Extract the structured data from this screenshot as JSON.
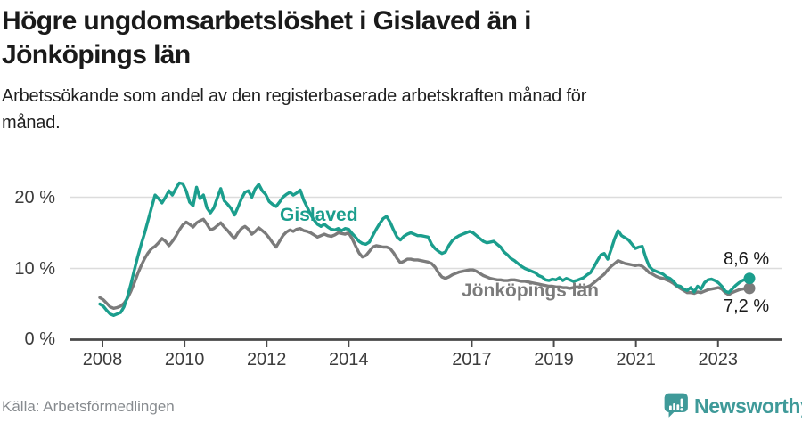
{
  "header": {
    "title_lines": [
      "Högre ungdomsarbetslöshet i Gislaved än i",
      "Jönköpings län"
    ],
    "subtitle_lines": [
      "Arbetssökande som andel av den registerbaserade arbetskraften månad för",
      "månad."
    ]
  },
  "footer": {
    "source": "Källa: Arbetsförmedlingen",
    "brand": "Newsworthy"
  },
  "colors": {
    "gislaved_line": "#1b9e8d",
    "jonkoping_line": "#7b7b7b",
    "brand_teal": "#3f9a99",
    "axis": "#4a4a4a",
    "gridline": "#dcdcdc",
    "text_dark": "#1a1a1a"
  },
  "chart_data": {
    "type": "line",
    "title": "Högre ungdomsarbetslöshet i Gislaved än i Jönköpings län",
    "subtitle": "Arbetssökande som andel av den registerbaserade arbetskraften månad för månad.",
    "unit": "%",
    "frequency": "monthly",
    "start": "2008-01",
    "end": "2023-09",
    "ylim": [
      0,
      24
    ],
    "grid": "horizontal",
    "y_ticks": [
      0,
      10,
      20
    ],
    "y_tick_labels": [
      "0 %",
      "10 %",
      "20 %"
    ],
    "x_tick_years": [
      2008,
      2010,
      2012,
      2014,
      2017,
      2019,
      2021,
      2023
    ],
    "series": [
      {
        "name": "Gislaved",
        "color": "#1b9e8d",
        "end_label": "8,6 %",
        "last_value": 8.6,
        "values": [
          5.0,
          4.7,
          4.1,
          3.6,
          3.4,
          3.6,
          3.8,
          4.6,
          6.0,
          7.8,
          9.8,
          11.7,
          13.4,
          15.0,
          16.8,
          18.6,
          20.3,
          19.8,
          19.2,
          20.0,
          20.9,
          20.3,
          21.2,
          22.0,
          21.9,
          20.9,
          19.3,
          18.8,
          21.4,
          19.8,
          20.3,
          18.5,
          17.8,
          18.5,
          19.9,
          21.2,
          19.5,
          19.0,
          18.4,
          17.5,
          18.6,
          19.8,
          20.7,
          20.9,
          20.0,
          21.2,
          21.8,
          20.9,
          20.4,
          19.4,
          19.0,
          18.7,
          19.3,
          20.0,
          20.4,
          20.7,
          20.3,
          20.6,
          21.0,
          19.6,
          18.6,
          17.6,
          16.8,
          16.2,
          15.9,
          16.2,
          15.8,
          15.5,
          15.4,
          15.6,
          15.3,
          15.6,
          15.5,
          14.9,
          14.4,
          13.8,
          13.5,
          13.4,
          13.7,
          14.6,
          15.5,
          16.3,
          17.0,
          17.3,
          16.5,
          15.4,
          14.4,
          14.0,
          14.5,
          14.8,
          15.0,
          14.8,
          14.6,
          14.6,
          14.5,
          14.4,
          13.4,
          12.8,
          12.4,
          12.1,
          12.3,
          13.2,
          13.9,
          14.3,
          14.6,
          14.8,
          15.0,
          15.2,
          15.0,
          14.6,
          14.2,
          13.8,
          13.6,
          13.7,
          13.8,
          13.4,
          13.0,
          12.3,
          11.9,
          11.4,
          11.1,
          10.7,
          10.3,
          10.0,
          9.8,
          9.6,
          9.4,
          9.0,
          8.8,
          8.4,
          8.3,
          8.5,
          8.4,
          8.7,
          8.3,
          8.6,
          8.4,
          8.2,
          8.3,
          8.5,
          8.7,
          9.1,
          9.4,
          10.2,
          11.1,
          11.9,
          12.1,
          11.3,
          12.7,
          14.2,
          15.3,
          14.6,
          14.3,
          14.0,
          13.4,
          12.8,
          13.0,
          13.1,
          11.5,
          10.3,
          9.8,
          9.6,
          9.4,
          9.2,
          8.8,
          8.6,
          8.2,
          7.6,
          7.5,
          7.1,
          6.9,
          7.3,
          6.7,
          7.5,
          7.1,
          8.0,
          8.4,
          8.5,
          8.3,
          8.0,
          7.5,
          6.8,
          6.6,
          7.1,
          7.6,
          8.0,
          8.3,
          8.5,
          8.6
        ]
      },
      {
        "name": "Jönköpings län",
        "color": "#7b7b7b",
        "end_label": "7,2 %",
        "last_value": 7.2,
        "values": [
          5.9,
          5.6,
          5.1,
          4.6,
          4.4,
          4.5,
          4.7,
          5.1,
          5.8,
          6.8,
          8.0,
          9.3,
          10.4,
          11.4,
          12.2,
          12.8,
          13.1,
          13.6,
          14.2,
          13.8,
          13.2,
          13.8,
          14.5,
          15.4,
          16.1,
          16.5,
          16.2,
          15.8,
          16.4,
          16.7,
          16.9,
          16.2,
          15.4,
          15.6,
          16.0,
          16.4,
          15.8,
          15.3,
          14.7,
          14.2,
          15.0,
          15.6,
          15.9,
          15.5,
          14.8,
          15.2,
          15.7,
          15.3,
          14.9,
          14.3,
          13.6,
          13.0,
          13.8,
          14.6,
          15.1,
          15.4,
          15.2,
          15.5,
          15.6,
          15.3,
          15.2,
          15.0,
          14.7,
          14.4,
          14.6,
          14.8,
          14.6,
          14.5,
          14.7,
          15.0,
          14.9,
          14.8,
          15.0,
          14.2,
          13.2,
          12.2,
          11.6,
          11.8,
          12.4,
          13.0,
          13.2,
          13.1,
          13.0,
          13.0,
          12.8,
          12.2,
          11.4,
          10.8,
          11.0,
          11.3,
          11.3,
          11.2,
          11.2,
          11.1,
          11.0,
          10.9,
          10.7,
          10.2,
          9.4,
          8.8,
          8.6,
          8.8,
          9.1,
          9.3,
          9.5,
          9.6,
          9.7,
          9.8,
          9.8,
          9.6,
          9.3,
          9.0,
          8.8,
          8.6,
          8.5,
          8.4,
          8.4,
          8.3,
          8.3,
          8.4,
          8.4,
          8.3,
          8.2,
          8.2,
          8.1,
          8.0,
          7.9,
          7.8,
          7.7,
          7.6,
          7.5,
          7.5,
          7.4,
          7.4,
          7.3,
          7.3,
          7.2,
          7.3,
          7.4,
          7.4,
          7.3,
          7.4,
          7.6,
          8.0,
          8.4,
          8.8,
          9.2,
          9.8,
          10.3,
          10.7,
          11.1,
          10.9,
          10.7,
          10.6,
          10.5,
          10.4,
          10.5,
          10.3,
          9.9,
          9.4,
          9.2,
          8.9,
          8.7,
          8.6,
          8.4,
          8.2,
          7.9,
          7.5,
          7.2,
          6.9,
          6.6,
          6.6,
          6.5,
          6.7,
          6.6,
          6.8,
          7.0,
          7.1,
          7.2,
          7.3,
          7.1,
          6.6,
          6.3,
          6.6,
          6.8,
          7.0,
          7.1,
          7.2,
          7.2
        ]
      }
    ]
  }
}
